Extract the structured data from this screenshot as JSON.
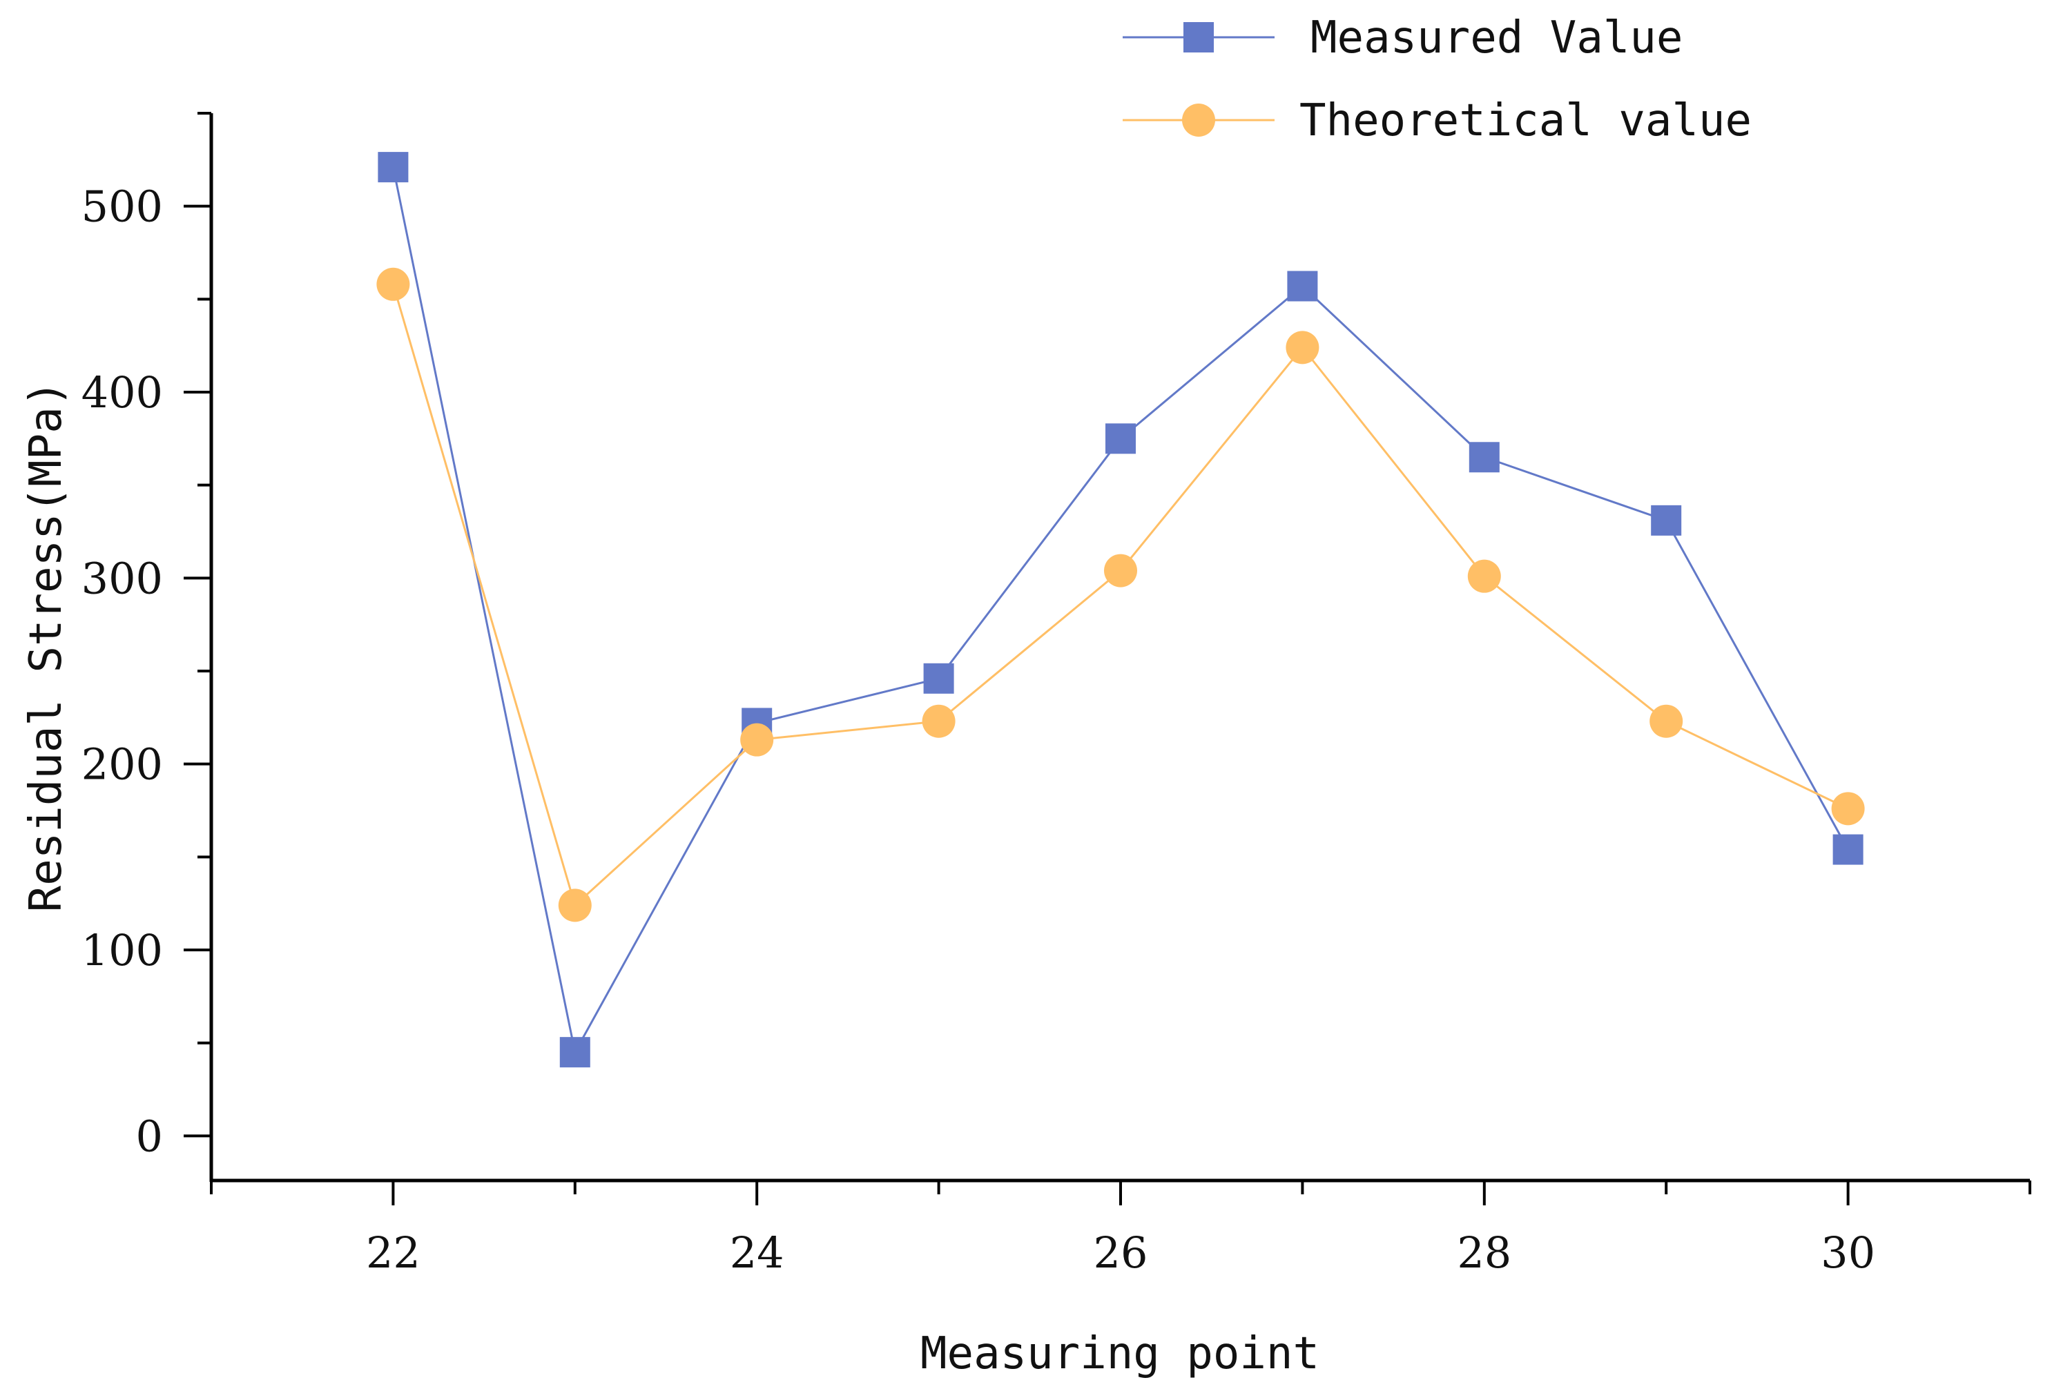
{
  "chart_data": {
    "type": "line",
    "xlabel": "Measuring point",
    "ylabel": "Residual Stress(MPa)",
    "x": [
      22,
      23,
      24,
      25,
      26,
      27,
      28,
      29,
      30
    ],
    "xlim": [
      21,
      31
    ],
    "ylim": [
      -24,
      550
    ],
    "xticks": [
      22,
      24,
      26,
      28,
      30
    ],
    "yticks": [
      0,
      100,
      200,
      300,
      400,
      500
    ],
    "grid": false,
    "legend_position": "top-right",
    "series": [
      {
        "name": "Measured Value",
        "marker": "square",
        "color": "#6279C8",
        "values": [
          521,
          45,
          222,
          246,
          375,
          457,
          365,
          331,
          154
        ]
      },
      {
        "name": "Theoretical value",
        "marker": "circle",
        "color": "#FFBF66",
        "values": [
          458,
          124,
          213,
          223,
          304,
          424,
          301,
          223,
          176
        ]
      }
    ]
  }
}
